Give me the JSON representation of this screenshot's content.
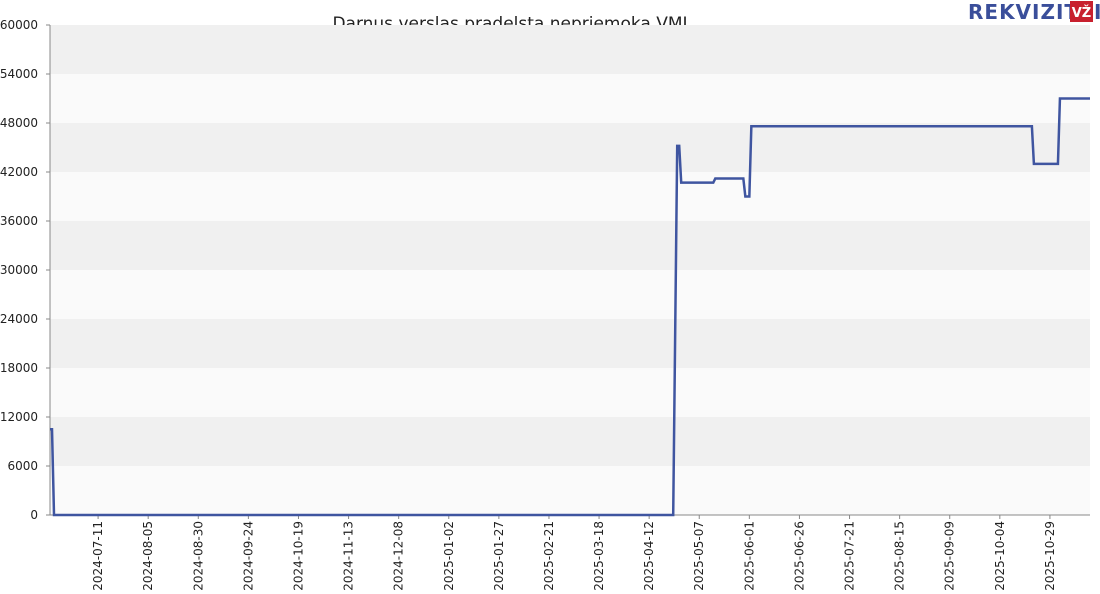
{
  "chart_data": {
    "type": "line",
    "title": "Darnus verslas pradelsta nepriemoka VMI",
    "logo": {
      "text": "REKVIZITAI",
      "badge": "VŽ"
    },
    "x": [
      "2024-06-17",
      "2024-06-18",
      "2024-06-19",
      "2025-04-24",
      "2025-04-26",
      "2025-04-27",
      "2025-04-28",
      "2025-05-14",
      "2025-05-15",
      "2025-05-29",
      "2025-05-30",
      "2025-06-01",
      "2025-06-02",
      "2025-10-20",
      "2025-10-21",
      "2025-11-02",
      "2025-11-03",
      "2025-11-18"
    ],
    "series": [
      {
        "color": "#3f55a0",
        "values": [
          10500,
          10500,
          0,
          0,
          45200,
          45200,
          40700,
          40700,
          41200,
          41200,
          39000,
          39000,
          47600,
          47600,
          43000,
          43000,
          51000,
          51000
        ]
      }
    ],
    "xlim": [
      "2024-06-17",
      "2025-11-18"
    ],
    "xticks": [
      "2024-07-11",
      "2024-08-05",
      "2024-08-30",
      "2024-09-24",
      "2024-10-19",
      "2024-11-13",
      "2024-12-08",
      "2025-01-02",
      "2025-01-27",
      "2025-02-21",
      "2025-03-18",
      "2025-04-12",
      "2025-05-07",
      "2025-06-01",
      "2025-06-26",
      "2025-07-21",
      "2025-08-15",
      "2025-09-09",
      "2025-10-04",
      "2025-10-29"
    ],
    "ylim": [
      0,
      60000
    ],
    "yticks": [
      0,
      6000,
      12000,
      18000,
      24000,
      30000,
      36000,
      42000,
      48000,
      54000,
      60000
    ],
    "grid": true
  }
}
